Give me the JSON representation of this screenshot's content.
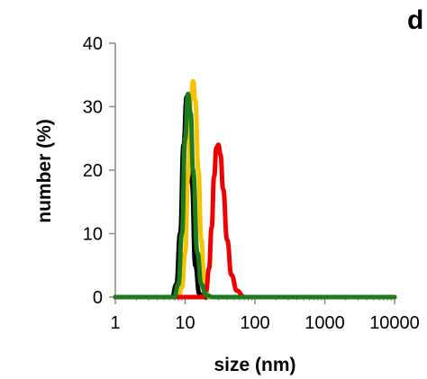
{
  "chart_data": {
    "type": "line",
    "panel_label": "d",
    "xlabel": "size (nm)",
    "ylabel": "number (%)",
    "x_scale": "log",
    "xlim": [
      1,
      10000
    ],
    "ylim": [
      0,
      40
    ],
    "x_ticks": [
      1,
      10,
      100,
      1000,
      10000
    ],
    "x_tick_labels": [
      "1",
      "10",
      "100",
      "1000",
      "10000"
    ],
    "y_ticks": [
      0,
      10,
      20,
      30,
      40
    ],
    "y_tick_labels": [
      "0",
      "10",
      "20",
      "30",
      "40"
    ],
    "grid": false,
    "legend": "none",
    "series": [
      {
        "color": "#000000",
        "peak_x": 10.5,
        "peak_y": 31.5,
        "points": [
          [
            6.5,
            0
          ],
          [
            7.5,
            2
          ],
          [
            8.5,
            10
          ],
          [
            9.5,
            24
          ],
          [
            10.5,
            31.5
          ],
          [
            11.5,
            29
          ],
          [
            12.5,
            18
          ],
          [
            14,
            5
          ],
          [
            16,
            0.5
          ],
          [
            18,
            0
          ]
        ]
      },
      {
        "color": "#f5c400",
        "peak_x": 13,
        "peak_y": 34,
        "points": [
          [
            8,
            0
          ],
          [
            9,
            1.5
          ],
          [
            10,
            7
          ],
          [
            11,
            19
          ],
          [
            12,
            31
          ],
          [
            13,
            34
          ],
          [
            14,
            31
          ],
          [
            15.5,
            20
          ],
          [
            17,
            9
          ],
          [
            19,
            2
          ],
          [
            22,
            0
          ]
        ]
      },
      {
        "color": "#ee0000",
        "peak_x": 29,
        "peak_y": 24,
        "points": [
          [
            18,
            0
          ],
          [
            20,
            1
          ],
          [
            22,
            4.5
          ],
          [
            24,
            11
          ],
          [
            26,
            19
          ],
          [
            28,
            23.5
          ],
          [
            30,
            24
          ],
          [
            32,
            22.5
          ],
          [
            35,
            17
          ],
          [
            40,
            9
          ],
          [
            46,
            3.5
          ],
          [
            55,
            1
          ],
          [
            70,
            0
          ]
        ]
      },
      {
        "color": "#1e7a1e",
        "peak_x": 11,
        "peak_y": 32,
        "points": [
          [
            7,
            0
          ],
          [
            8,
            2
          ],
          [
            9,
            10
          ],
          [
            10,
            25
          ],
          [
            11,
            32
          ],
          [
            12,
            29
          ],
          [
            13,
            20
          ],
          [
            15,
            7
          ],
          [
            17,
            2
          ],
          [
            20,
            0.3
          ],
          [
            25,
            0
          ]
        ]
      }
    ]
  }
}
